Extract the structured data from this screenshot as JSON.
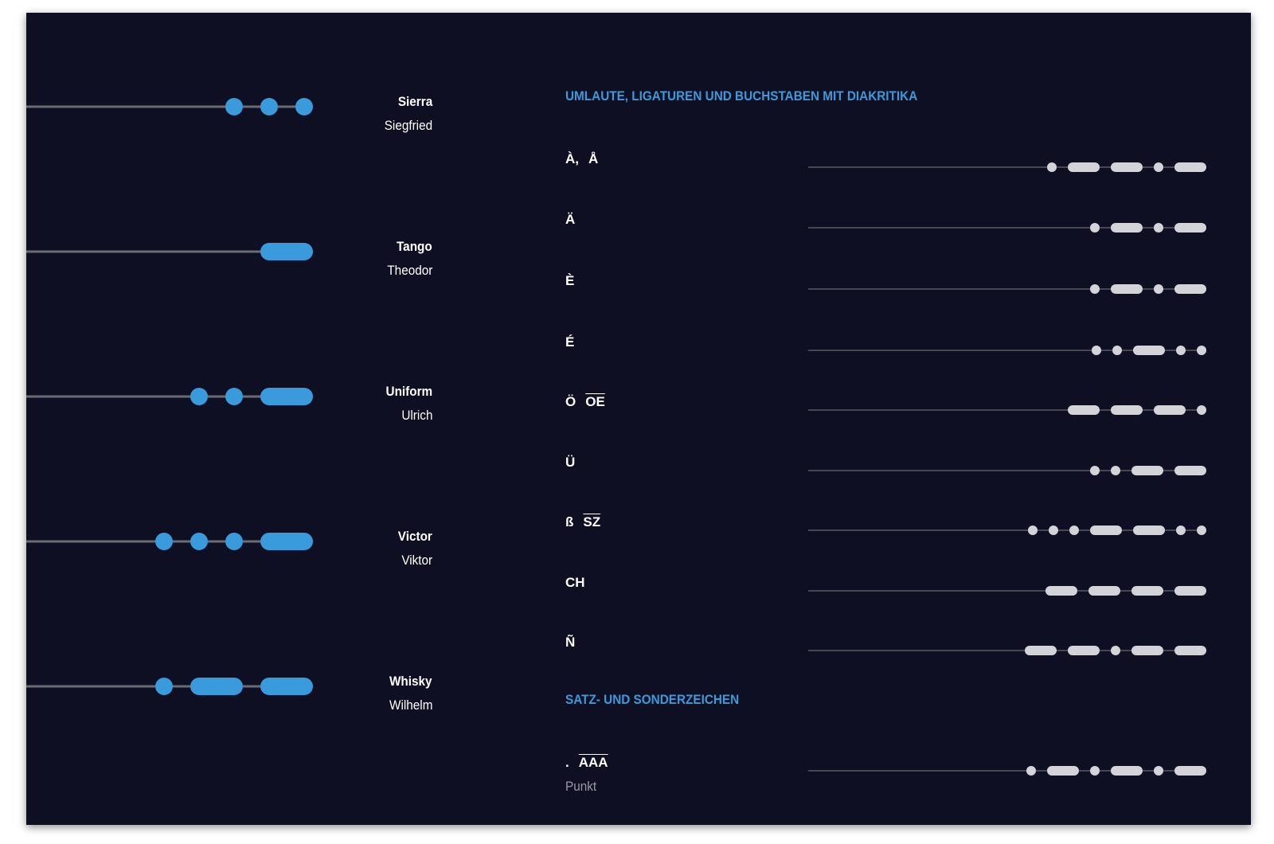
{
  "colors": {
    "background": "#0e0f22",
    "accent": "#3a9bdc",
    "heading": "#3a9bdc",
    "signal_light": "#d4d4d8",
    "line": "#6b6b73",
    "line_light": "#5a5a63",
    "caption": "#9a9aa8"
  },
  "nato": [
    {
      "code_word": "Sierra",
      "german_word": "Siegfried",
      "signal": ".-.-.",
      "pattern": [
        "dot",
        "dot",
        "dot"
      ]
    },
    {
      "code_word": "Tango",
      "german_word": "Theodor",
      "pattern": [
        "dash"
      ]
    },
    {
      "code_word": "Uniform",
      "german_word": "Ulrich",
      "pattern": [
        "dot",
        "dot",
        "dash"
      ]
    },
    {
      "code_word": "Victor",
      "german_word": "Viktor",
      "pattern": [
        "dot",
        "dot",
        "dot",
        "dash"
      ]
    },
    {
      "code_word": "Whisky",
      "german_word": "Wilhelm",
      "pattern": [
        "dot",
        "dash",
        "dash"
      ]
    }
  ],
  "sections": {
    "diacritics": "UMLAUTE, LIGATUREN UND BUCHSTABEN MIT DIAKRITIKA",
    "punctuation": "SATZ- UND SONDERZEICHEN"
  },
  "characters": [
    {
      "glyph": "À,",
      "glyph2": "Å",
      "pattern": [
        "dot",
        "dash",
        "dash",
        "dot",
        "dash"
      ]
    },
    {
      "glyph": "Ä",
      "glyph2": "",
      "pattern": [
        "dot",
        "dash",
        "dot",
        "dash"
      ]
    },
    {
      "glyph": "È",
      "glyph2": "",
      "pattern": [
        "dot",
        "dash",
        "dot",
        "dash"
      ]
    },
    {
      "glyph": "É",
      "glyph2": "",
      "pattern": [
        "dot",
        "dot",
        "dash",
        "dot",
        "dot"
      ]
    },
    {
      "glyph": "Ö",
      "glyph2": "OE",
      "pattern": [
        "dash",
        "dash",
        "dash",
        "dot"
      ]
    },
    {
      "glyph": "Ü",
      "glyph2": "",
      "pattern": [
        "dot",
        "dot",
        "dash",
        "dash"
      ]
    },
    {
      "glyph": "ß",
      "glyph2": "SZ",
      "pattern": [
        "dot",
        "dot",
        "dot",
        "dash",
        "dash",
        "dot",
        "dot"
      ]
    },
    {
      "glyph": "CH",
      "glyph2": "",
      "pattern": [
        "dash",
        "dash",
        "dash",
        "dash"
      ]
    },
    {
      "glyph": "Ñ",
      "glyph2": "",
      "pattern": [
        "dash",
        "dash",
        "dot",
        "dash",
        "dash"
      ]
    }
  ],
  "punctuation": [
    {
      "glyph": ".",
      "glyph2": "AAA",
      "caption": "Punkt",
      "pattern": [
        "dot",
        "dash",
        "dot",
        "dash",
        "dot",
        "dash"
      ]
    }
  ]
}
